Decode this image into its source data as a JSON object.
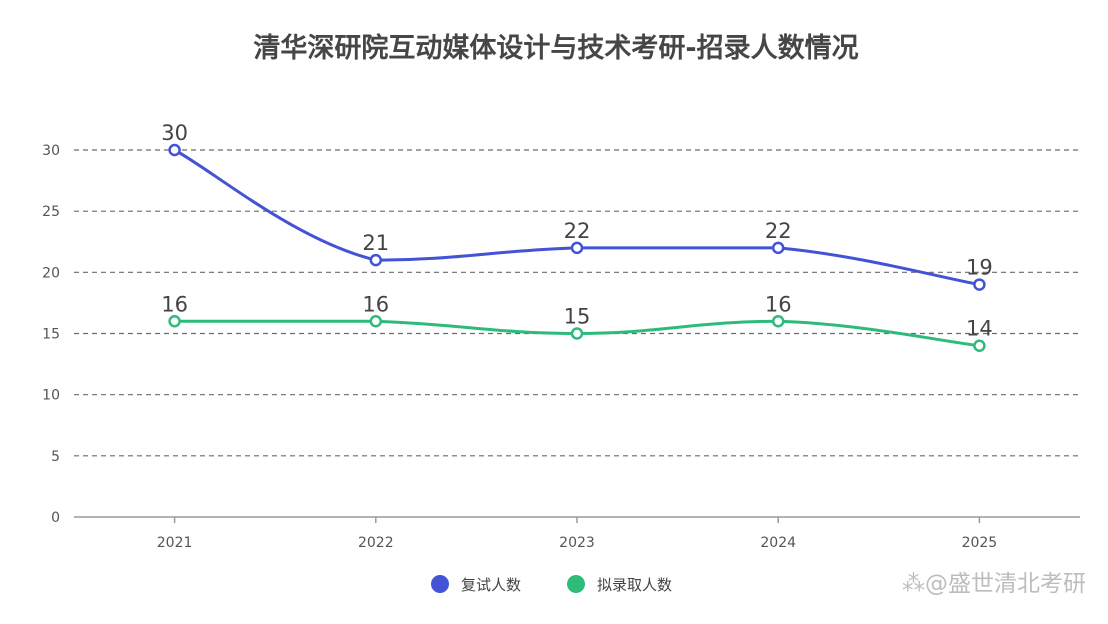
{
  "chart_data": {
    "type": "line",
    "title": "清华深研院互动媒体设计与技术考研-招录人数情况",
    "categories": [
      "2021",
      "2022",
      "2023",
      "2024",
      "2025"
    ],
    "series": [
      {
        "name": "复试人数",
        "values": [
          30,
          21,
          22,
          22,
          19
        ],
        "color": "#4353d6"
      },
      {
        "name": "拟录取人数",
        "values": [
          16,
          16,
          15,
          16,
          14
        ],
        "color": "#2dbb7a"
      }
    ],
    "ylim": [
      0,
      30
    ],
    "yticks": [
      0,
      5,
      10,
      15,
      20,
      25,
      30
    ],
    "grid": true,
    "grid_style": "dashed",
    "legend_position": "bottom",
    "smooth": true
  },
  "watermark": "⁂@盛世清北考研"
}
